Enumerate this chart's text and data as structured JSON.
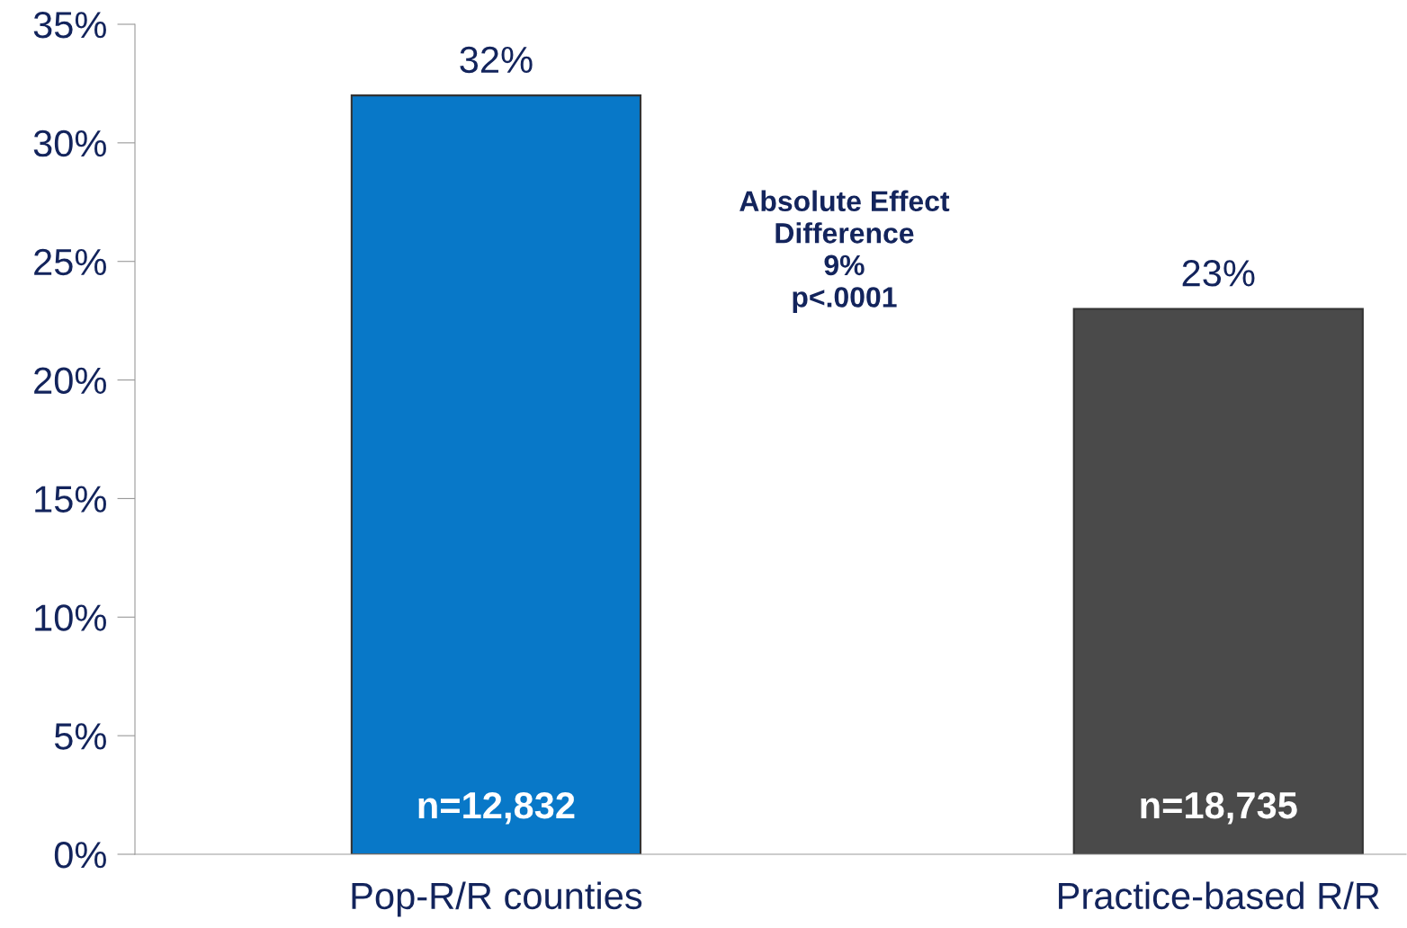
{
  "chart_data": {
    "type": "bar",
    "categories": [
      "Pop-R/R counties",
      "Practice-based R/R"
    ],
    "values": [
      32,
      23
    ],
    "colors": [
      "#0878c8",
      "#4a4a4a"
    ],
    "value_labels": [
      "32%",
      "23%"
    ],
    "ylim": [
      0,
      35
    ],
    "yticks": [
      {
        "value": 0,
        "label": "0%"
      },
      {
        "value": 5,
        "label": "5%"
      },
      {
        "value": 10,
        "label": "10%"
      },
      {
        "value": 15,
        "label": "15%"
      },
      {
        "value": 20,
        "label": "20%"
      },
      {
        "value": 25,
        "label": "25%"
      },
      {
        "value": 30,
        "label": "30%"
      },
      {
        "value": 35,
        "label": "35%"
      }
    ],
    "grid": false,
    "legend": false,
    "annotations": [
      "n=12,832",
      "n=18,735",
      "Absolute Effect\nDifference\n9%\np<.0001"
    ]
  }
}
